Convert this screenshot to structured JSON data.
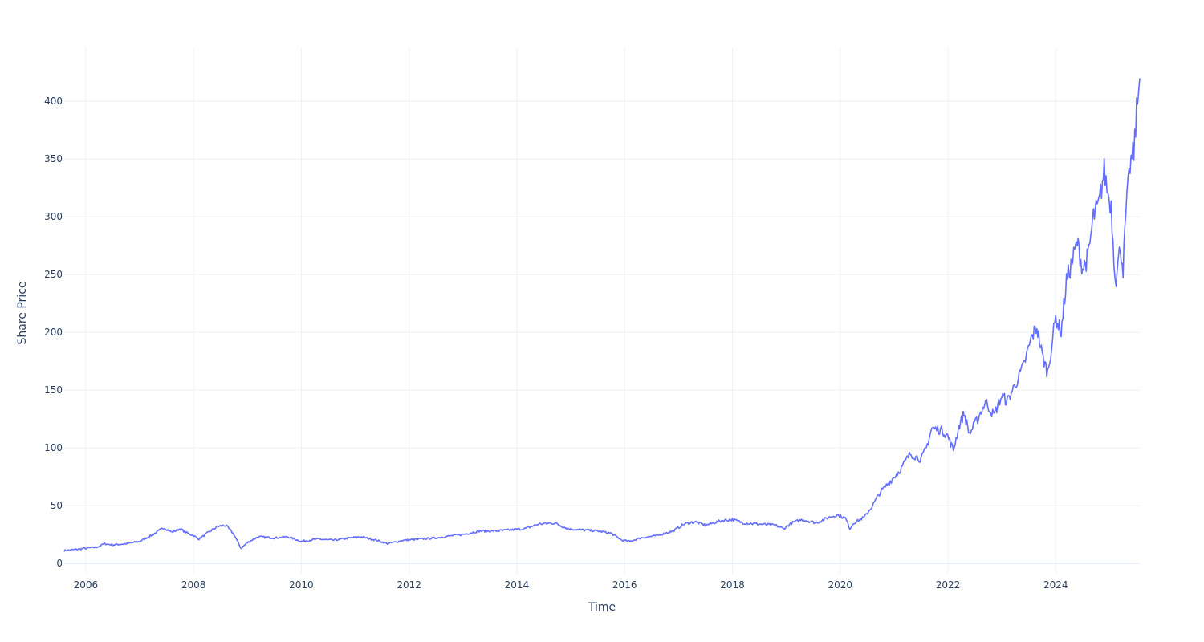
{
  "chart_data": {
    "type": "line",
    "xlabel": "Time",
    "ylabel": "Share Price",
    "xlim": [
      2005.6,
      2025.56
    ],
    "ylim": [
      -9,
      446
    ],
    "x_ticks": [
      2006,
      2008,
      2010,
      2012,
      2014,
      2016,
      2018,
      2020,
      2022,
      2024
    ],
    "x_tick_labels": [
      "2006",
      "2008",
      "2010",
      "2012",
      "2014",
      "2016",
      "2018",
      "2020",
      "2022",
      "2024"
    ],
    "y_ticks": [
      0,
      50,
      100,
      150,
      200,
      250,
      300,
      350,
      400
    ],
    "y_tick_labels": [
      "0",
      "50",
      "100",
      "150",
      "200",
      "250",
      "300",
      "350",
      "400"
    ],
    "grid": true,
    "series": [
      {
        "color": "#636efa",
        "x": [
          2005.6,
          2005.8,
          2006.0,
          2006.2,
          2006.35,
          2006.5,
          2006.75,
          2007.0,
          2007.25,
          2007.45,
          2007.6,
          2007.75,
          2007.85,
          2008.0,
          2008.1,
          2008.25,
          2008.45,
          2008.6,
          2008.75,
          2008.88,
          2009.0,
          2009.2,
          2009.5,
          2009.75,
          2010.0,
          2010.3,
          2010.6,
          2010.9,
          2011.1,
          2011.4,
          2011.6,
          2011.9,
          2012.2,
          2012.5,
          2012.8,
          2013.0,
          2013.3,
          2013.6,
          2013.9,
          2014.15,
          2014.4,
          2014.7,
          2014.95,
          2015.2,
          2015.5,
          2015.75,
          2015.95,
          2016.1,
          2016.3,
          2016.6,
          2016.9,
          2017.1,
          2017.3,
          2017.5,
          2017.8,
          2018.0,
          2018.2,
          2018.5,
          2018.8,
          2018.95,
          2019.1,
          2019.3,
          2019.55,
          2019.8,
          2019.95,
          2020.1,
          2020.18,
          2020.25,
          2020.45,
          2020.6,
          2020.75,
          2020.95,
          2021.1,
          2021.3,
          2021.5,
          2021.6,
          2021.7,
          2021.9,
          2022.0,
          2022.1,
          2022.2,
          2022.3,
          2022.4,
          2022.55,
          2022.7,
          2022.85,
          2023.0,
          2023.1,
          2023.25,
          2023.4,
          2023.55,
          2023.65,
          2023.75,
          2023.85,
          2024.0,
          2024.1,
          2024.2,
          2024.3,
          2024.4,
          2024.5,
          2024.6,
          2024.7,
          2024.8,
          2024.9,
          2024.97,
          2025.03,
          2025.08,
          2025.12,
          2025.2,
          2025.25,
          2025.3,
          2025.38,
          2025.45,
          2025.5,
          2025.56
        ],
        "values": [
          11,
          12,
          13,
          14,
          17,
          16,
          17,
          19,
          25,
          31,
          27,
          30,
          27,
          24,
          21,
          26,
          32,
          33,
          25,
          13,
          18,
          23,
          22,
          23,
          19,
          21,
          20,
          22,
          23,
          20,
          17,
          20,
          21,
          22,
          24,
          25,
          28,
          28,
          29,
          30,
          34,
          35,
          30,
          29,
          28,
          26,
          20,
          19,
          22,
          24,
          28,
          34,
          36,
          33,
          37,
          38,
          35,
          34,
          33,
          30,
          35,
          38,
          35,
          40,
          42,
          39,
          30,
          35,
          40,
          50,
          62,
          72,
          80,
          95,
          90,
          100,
          117,
          115,
          110,
          98,
          118,
          130,
          112,
          125,
          140,
          128,
          145,
          140,
          155,
          170,
          195,
          205,
          180,
          165,
          213,
          200,
          245,
          260,
          278,
          255,
          265,
          300,
          310,
          340,
          320,
          310,
          265,
          245,
          275,
          255,
          300,
          345,
          355,
          390,
          420
        ]
      }
    ]
  }
}
